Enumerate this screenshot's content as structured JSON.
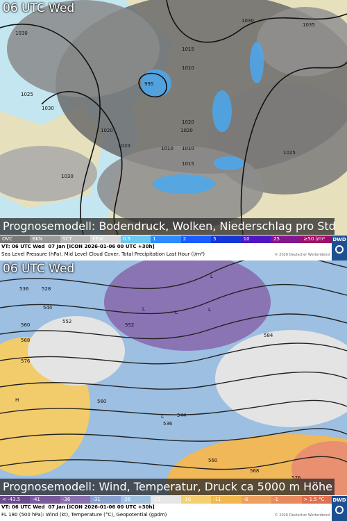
{
  "panels": [
    {
      "time": "06 UTC Wed",
      "caption": "Prognosemodell: Bodendruck, Wolken, Niederschlag pro Std.",
      "legend": [
        {
          "label": "OVC",
          "color": "#7a7a7a"
        },
        {
          "label": "BKN",
          "color": "#9a9a9a"
        },
        {
          "label": "SCT",
          "color": "#b8b8b8"
        },
        {
          "label": "FEW",
          "color": "#d8d8d8"
        },
        {
          "label": "0.5",
          "color": "#6cc8f0"
        },
        {
          "label": "1",
          "color": "#2c8cff"
        },
        {
          "label": "2",
          "color": "#1a5cff"
        },
        {
          "label": "5",
          "color": "#1636d8"
        },
        {
          "label": "10",
          "color": "#5016c0"
        },
        {
          "label": "25",
          "color": "#84168f"
        },
        {
          "label": "≥50 l/m²",
          "color": "#9e0e66"
        }
      ],
      "valid": "VT: 06 UTC Wed  07 Jan [ICON 2026-01-06 00 UTC +30h]",
      "description": "Sea Level Pressure (hPa), Mid Level Cloud Cover, Total Precipitation Last Hour (l/m²)",
      "copyright": "© 2026 Deutscher Wetterdienst",
      "logo": "DWD",
      "map_labels": [
        "1030",
        "1025",
        "1020",
        "1030",
        "1030",
        "995",
        "1010",
        "1015",
        "1020",
        "1010",
        "1010",
        "1015",
        "1035",
        "1030",
        "1025",
        "1020",
        "1020"
      ]
    },
    {
      "time": "06 UTC Wed",
      "caption": "Prognosemodell: Wind, Temperatur, Druck ca 5000 m Höhe",
      "legend": [
        {
          "label": "< -43.5",
          "color": "#6a4a8c"
        },
        {
          "label": "-41",
          "color": "#7a5a9c"
        },
        {
          "label": "-36",
          "color": "#8a72b0"
        },
        {
          "label": "-31",
          "color": "#8aa0cc"
        },
        {
          "label": "-26",
          "color": "#a0c0e0"
        },
        {
          "label": "-21",
          "color": "#e6e6e6"
        },
        {
          "label": "-16",
          "color": "#f4d070"
        },
        {
          "label": "-11",
          "color": "#f2b850"
        },
        {
          "label": "-6",
          "color": "#eea060"
        },
        {
          "label": "-1",
          "color": "#e88a60"
        },
        {
          "label": "> 1.5 °C",
          "color": "#e07050"
        }
      ],
      "valid": "VT: 06 UTC Wed  07 Jan [ICON 2026-01-06 00 UTC +30h]",
      "description": "FL 180 (500 hPa): Wind (kt), Temperature (°C), Geopotential (gpdm)",
      "copyright": "© 2026 Deutscher Wetterdienst",
      "logo": "DWD",
      "map_labels": [
        "536",
        "528",
        "544",
        "552",
        "560",
        "568",
        "576",
        "560",
        "584",
        "552",
        "536",
        "544",
        "560",
        "568",
        "576",
        "H",
        "L",
        "L",
        "L",
        "L",
        "L"
      ]
    }
  ]
}
